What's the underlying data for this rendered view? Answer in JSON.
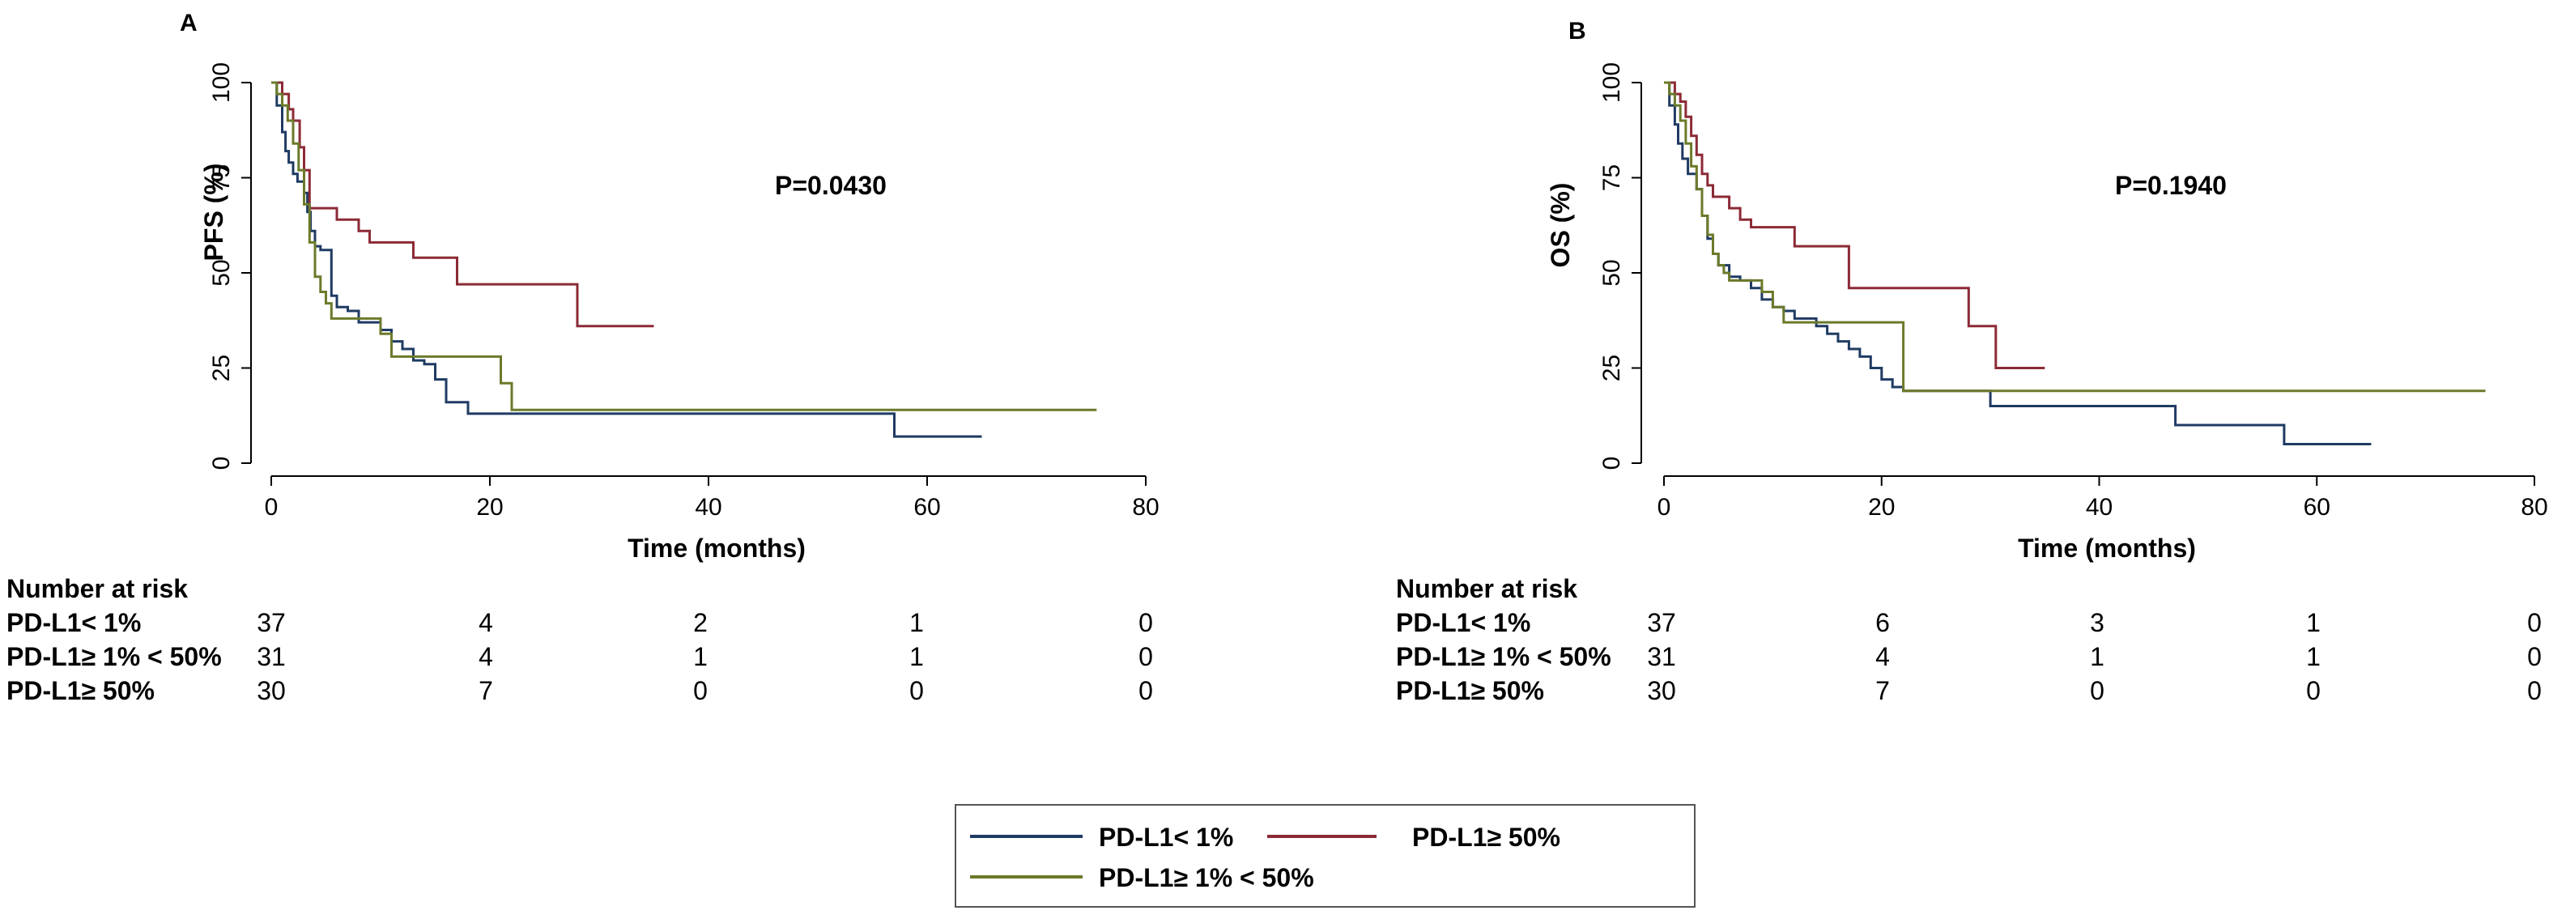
{
  "chart_data": [
    {
      "type": "line",
      "panel_label": "A",
      "title": "",
      "xlabel": "Time (months)",
      "ylabel": "PFS (%)",
      "xlim": [
        0,
        80
      ],
      "ylim": [
        0,
        100
      ],
      "xticks": [
        "0",
        "20",
        "40",
        "60",
        "80"
      ],
      "yticks": [
        "0",
        "25",
        "50",
        "75",
        "100"
      ],
      "grid": false,
      "annotation": "P=0.0430",
      "series": [
        {
          "name": "PD-L1< 1%",
          "color": "#1f3b63",
          "x": [
            0,
            0.5,
            1,
            1.3,
            1.6,
            2,
            2.4,
            3,
            3.3,
            3.6,
            4,
            4.5,
            5,
            5.5,
            6,
            7,
            8,
            9,
            10,
            11,
            12,
            13,
            14,
            15,
            16,
            18,
            56,
            57,
            65
          ],
          "y": [
            100,
            94,
            87,
            82,
            79,
            76,
            74,
            71,
            66,
            61,
            57,
            56,
            56,
            44,
            41,
            40,
            37,
            37,
            35,
            32,
            30,
            27,
            26,
            22,
            16,
            13,
            13,
            7,
            7
          ]
        },
        {
          "name": "PD-L1≥ 50%",
          "color": "#8c2a36",
          "x": [
            0,
            1,
            1.6,
            2,
            2.6,
            3,
            3.5,
            6,
            8,
            9,
            12,
            13,
            17,
            28,
            35
          ],
          "y": [
            100,
            97,
            93,
            90,
            83,
            77,
            67,
            64,
            61,
            58,
            58,
            54,
            47,
            36,
            36
          ]
        },
        {
          "name": "PD-L1≥ 1% < 50%",
          "color": "#6b7a2a",
          "x": [
            0,
            0.5,
            1,
            1.5,
            2,
            2.5,
            3,
            3.5,
            4,
            4.5,
            5,
            5.5,
            9,
            10,
            11,
            21,
            22,
            75.5
          ],
          "y": [
            100,
            97,
            94,
            90,
            84,
            77,
            68,
            58,
            49,
            45,
            42,
            38,
            38,
            34,
            28,
            21,
            14,
            14
          ]
        }
      ],
      "risk_table": {
        "title": "Number at risk",
        "times": [
          0,
          20,
          40,
          60,
          80
        ],
        "rows": [
          {
            "label": "PD-L1< 1%",
            "values": [
              "37",
              "4",
              "2",
              "1",
              "0"
            ]
          },
          {
            "label": "PD-L1≥ 1% < 50%",
            "values": [
              "31",
              "4",
              "1",
              "1",
              "0"
            ]
          },
          {
            "label": "PD-L1≥ 50%",
            "values": [
              "30",
              "7",
              "0",
              "0",
              "0"
            ]
          }
        ]
      }
    },
    {
      "type": "line",
      "panel_label": "B",
      "title": "",
      "xlabel": "Time (months)",
      "ylabel": "OS (%)",
      "xlim": [
        0,
        80
      ],
      "ylim": [
        0,
        100
      ],
      "xticks": [
        "0",
        "20",
        "40",
        "60",
        "80"
      ],
      "yticks": [
        "0",
        "25",
        "50",
        "75",
        "100"
      ],
      "grid": false,
      "annotation": "P=0.1940",
      "series": [
        {
          "name": "PD-L1< 1%",
          "color": "#1f3b63",
          "x": [
            0,
            0.5,
            1,
            1.3,
            1.7,
            2.2,
            3,
            3.5,
            4,
            4.5,
            5,
            6,
            7,
            8,
            9,
            10,
            11,
            12,
            13,
            14,
            15,
            16,
            17,
            18,
            19,
            20,
            21,
            22,
            29,
            30,
            46.5,
            47,
            56,
            57,
            65
          ],
          "y": [
            100,
            94,
            89,
            84,
            80,
            76,
            72,
            65,
            59,
            55,
            52,
            49,
            48,
            46,
            43,
            41,
            40,
            38,
            38,
            36,
            34,
            32,
            30,
            28,
            25,
            22,
            20,
            19,
            19,
            15,
            15,
            10,
            10,
            5,
            5
          ]
        },
        {
          "name": "PD-L1≥ 50%",
          "color": "#8c2a36",
          "x": [
            0,
            1,
            1.5,
            2,
            2.5,
            3,
            3.5,
            4,
            4.5,
            5,
            6,
            7,
            8,
            11,
            12,
            16.5,
            17,
            27.5,
            28,
            30,
            30.5,
            35
          ],
          "y": [
            100,
            97,
            95,
            91,
            86,
            81,
            76,
            73,
            70,
            70,
            67,
            64,
            62,
            62,
            57,
            57,
            46,
            46,
            36,
            36,
            25,
            25
          ]
        },
        {
          "name": "PD-L1≥ 1% < 50%",
          "color": "#6b7a2a",
          "x": [
            0,
            0.5,
            1,
            1.5,
            2,
            2.5,
            3,
            3.5,
            4,
            4.5,
            5,
            5.5,
            6,
            9,
            10,
            11,
            21.5,
            22,
            75.5
          ],
          "y": [
            100,
            97,
            94,
            90,
            84,
            78,
            72,
            65,
            60,
            55,
            52,
            50,
            48,
            45,
            41,
            37,
            37,
            19,
            19
          ]
        }
      ],
      "risk_table": {
        "title": "Number at risk",
        "times": [
          0,
          20,
          40,
          60,
          80
        ],
        "rows": [
          {
            "label": "PD-L1< 1%",
            "values": [
              "37",
              "6",
              "3",
              "1",
              "0"
            ]
          },
          {
            "label": "PD-L1≥ 1% < 50%",
            "values": [
              "31",
              "4",
              "1",
              "1",
              "0"
            ]
          },
          {
            "label": "PD-L1≥ 50%",
            "values": [
              "30",
              "7",
              "0",
              "0",
              "0"
            ]
          }
        ]
      }
    }
  ],
  "legend": {
    "position": "bottom-center",
    "items": [
      {
        "label": "PD-L1< 1%",
        "color": "#1f3b63"
      },
      {
        "label": "PD-L1≥ 50%",
        "color": "#8c2a36"
      },
      {
        "label": "PD-L1≥ 1% < 50%",
        "color": "#6b7a2a"
      }
    ]
  }
}
